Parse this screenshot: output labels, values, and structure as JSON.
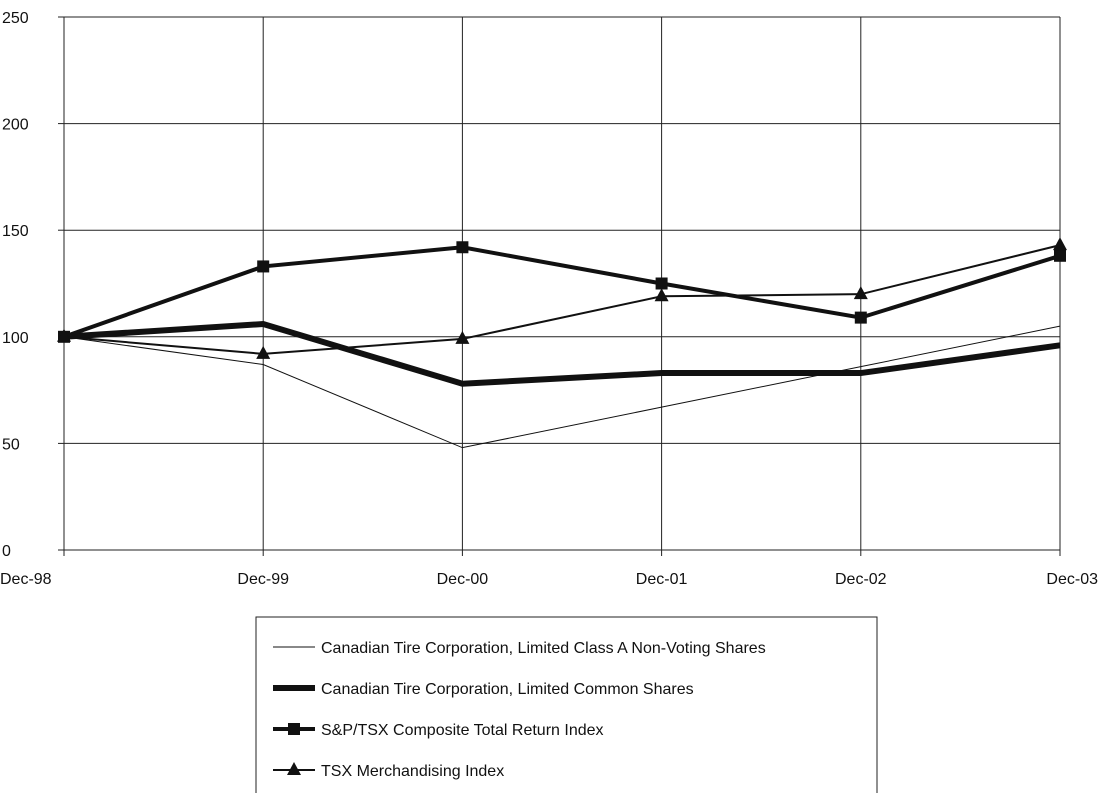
{
  "chart_data": {
    "type": "line",
    "x": [
      "Dec-98",
      "Dec-99",
      "Dec-00",
      "Dec-01",
      "Dec-02",
      "Dec-03"
    ],
    "ylim": [
      0,
      250
    ],
    "yticks": [
      0,
      50,
      100,
      150,
      200,
      250
    ],
    "grid": true,
    "legend_position": "bottom-center",
    "series": [
      {
        "name": "Canadian Tire Corporation, Limited Class A Non-Voting Shares",
        "values": [
          100,
          87,
          48,
          67,
          86,
          105
        ],
        "line_weight": "thin",
        "marker": "none",
        "color": "#111111"
      },
      {
        "name": "Canadian Tire Corporation, Limited Common Shares",
        "values": [
          100,
          106,
          78,
          83,
          83,
          96
        ],
        "line_weight": "extra-thick",
        "marker": "none",
        "color": "#111111"
      },
      {
        "name": "S&P/TSX Composite Total Return Index",
        "values": [
          100,
          133,
          142,
          125,
          109,
          138
        ],
        "line_weight": "thick",
        "marker": "square",
        "color": "#111111"
      },
      {
        "name": "TSX Merchandising Index",
        "values": [
          100,
          92,
          99,
          119,
          120,
          143
        ],
        "line_weight": "medium",
        "marker": "triangle",
        "color": "#111111"
      }
    ]
  }
}
